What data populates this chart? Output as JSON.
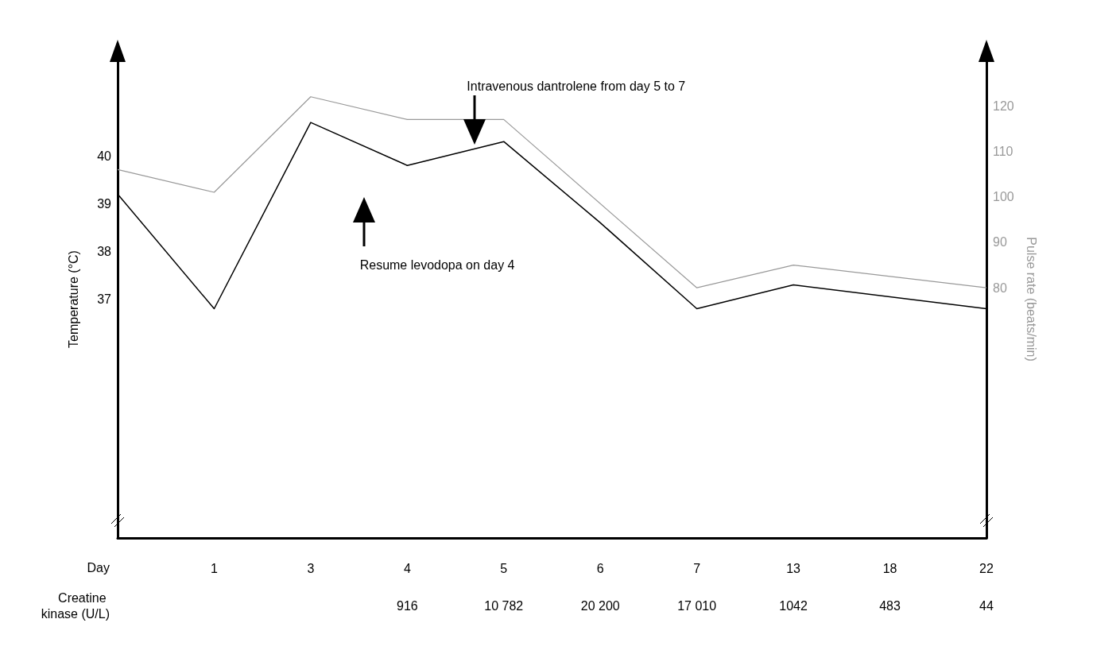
{
  "chart_data": {
    "type": "line",
    "xlabel": "Day",
    "ylabel": "Temperature (°C)",
    "y2label": "Pulse rate (beats/min)",
    "categories": [
      null,
      "1",
      "3",
      "4",
      "5",
      "6",
      "7",
      "13",
      "18",
      "22"
    ],
    "series": [
      {
        "name": null,
        "color": "#000000",
        "values": [
          39.2,
          36.8,
          40.7,
          39.8,
          40.3,
          38.6,
          36.8,
          37.3,
          null,
          36.8
        ]
      },
      {
        "name": null,
        "color": "#999999",
        "axis": "y2",
        "values": [
          106,
          101,
          122,
          117,
          117,
          null,
          80,
          85,
          null,
          80
        ]
      }
    ],
    "ylim": [
      32,
      42
    ],
    "yticks": [
      37,
      38,
      39,
      40
    ],
    "y2lim": [
      25,
      130
    ],
    "y2ticks": [
      80,
      90,
      100,
      110,
      120
    ],
    "grid": false,
    "marker": "none",
    "line_style": "solid",
    "annotations": [
      "Intravenous dantrolene from day 5 to 7",
      "Resume levodopa on day 4",
      "Creatine kinase (U/L)",
      "916",
      "10 782",
      "20 200",
      "17 010",
      "1042",
      "483",
      "44"
    ]
  }
}
